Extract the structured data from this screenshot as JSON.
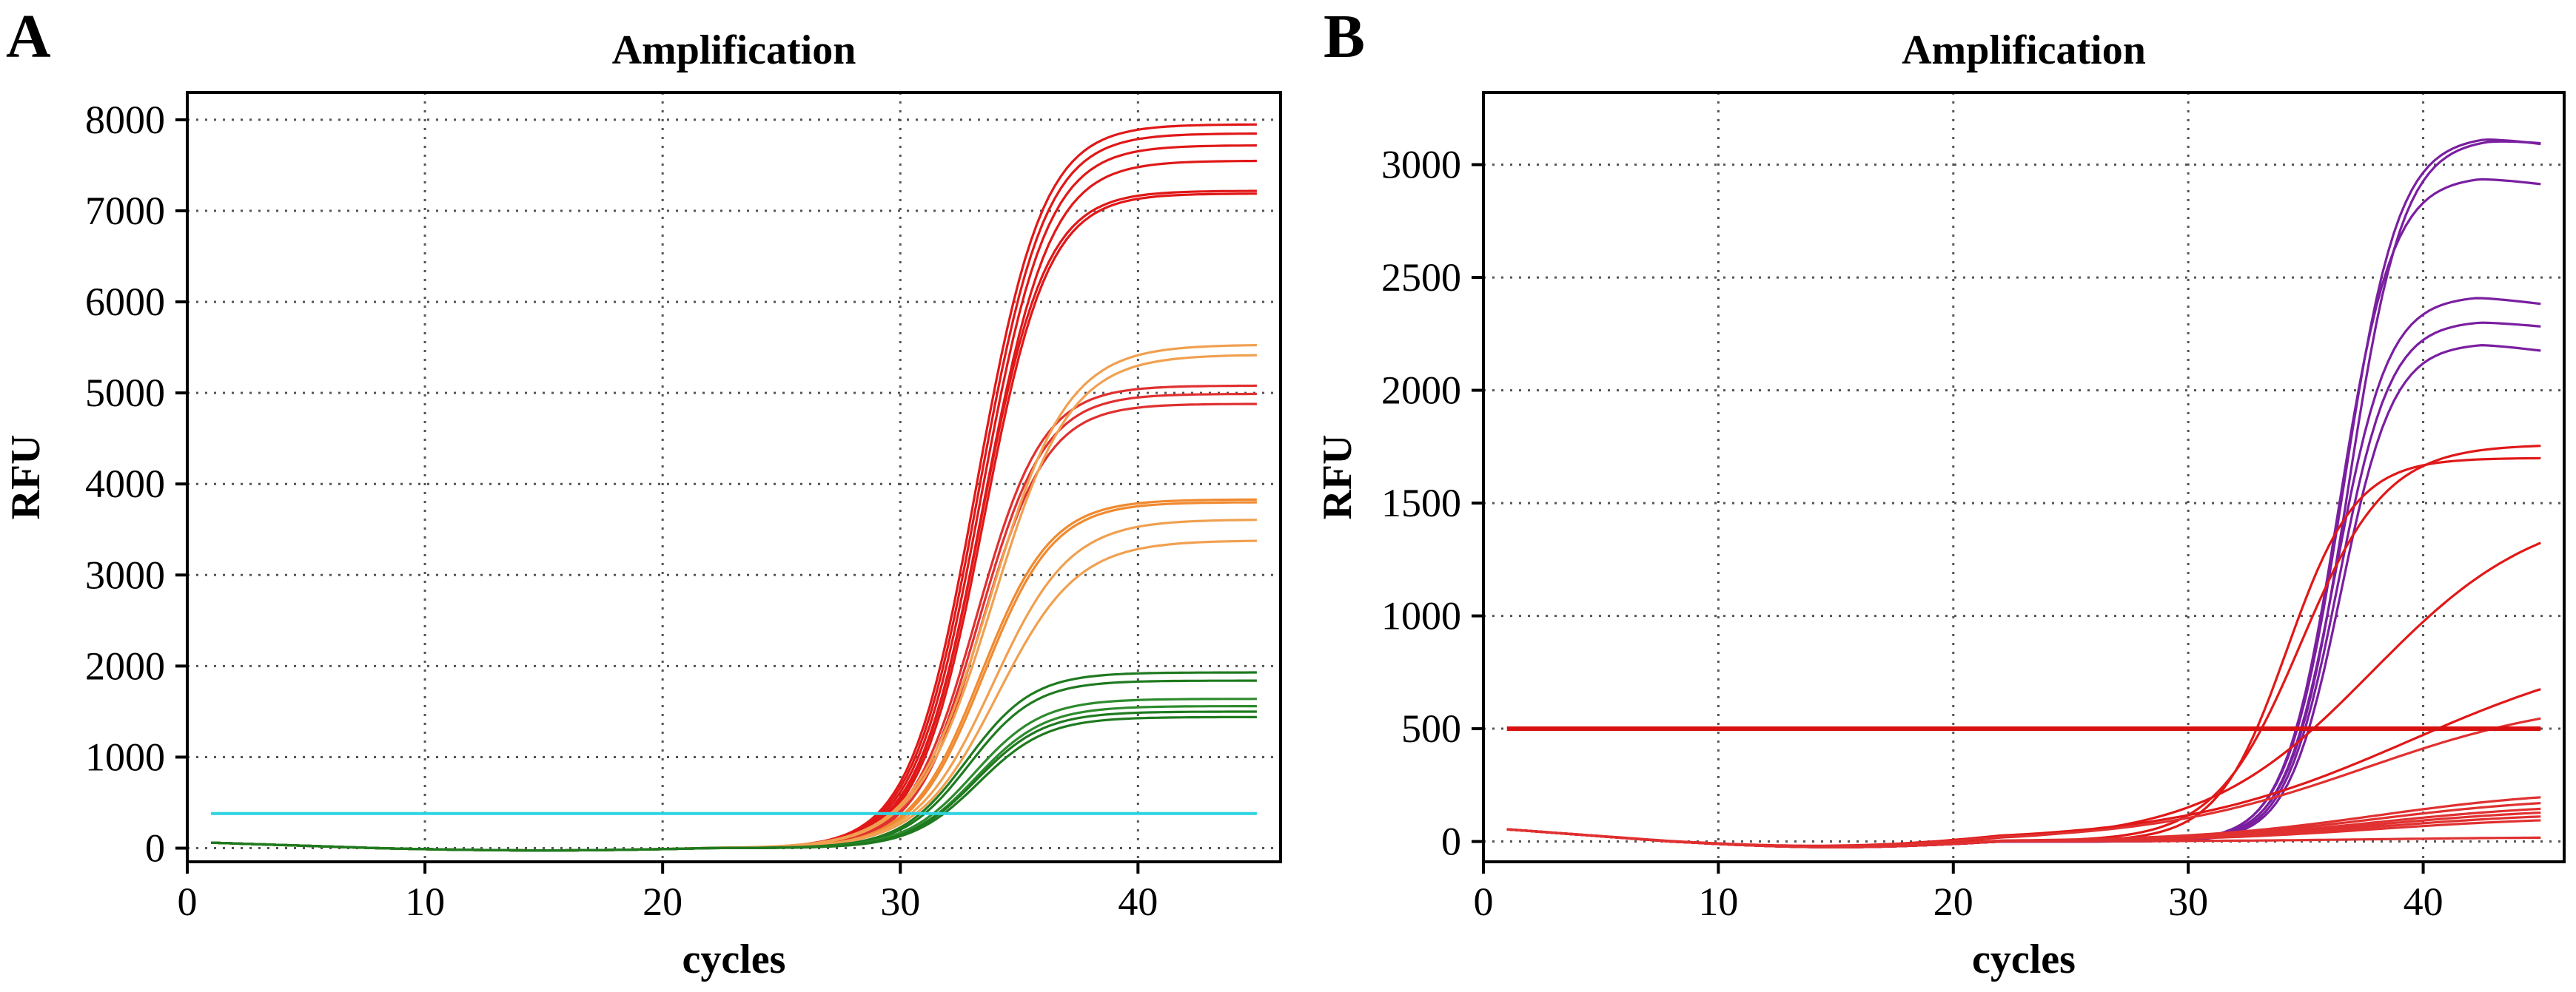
{
  "chart_data": [
    {
      "panel": "A",
      "type": "line",
      "title": "Amplification",
      "xlabel": "cycles",
      "ylabel": "RFU",
      "xlim": [
        0,
        46
      ],
      "ylim": [
        -150,
        8300
      ],
      "xticks": [
        0,
        10,
        20,
        30,
        40
      ],
      "yticks": [
        0,
        1000,
        2000,
        3000,
        4000,
        5000,
        6000,
        7000,
        8000
      ],
      "grid": true,
      "threshold": {
        "value": 380,
        "color": "#2cd4e0"
      },
      "series": [
        {
          "color": "#e01818",
          "plateau": 7950,
          "mid": 33.2,
          "k": 0.72
        },
        {
          "color": "#e01818",
          "plateau": 7850,
          "mid": 33.3,
          "k": 0.72
        },
        {
          "color": "#e01818",
          "plateau": 7720,
          "mid": 33.4,
          "k": 0.72
        },
        {
          "color": "#e01818",
          "plateau": 7550,
          "mid": 33.5,
          "k": 0.72
        },
        {
          "color": "#e01818",
          "plateau": 7220,
          "mid": 33.4,
          "k": 0.74
        },
        {
          "color": "#e01818",
          "plateau": 7190,
          "mid": 33.5,
          "k": 0.74
        },
        {
          "color": "#e03030",
          "plateau": 5080,
          "mid": 33.2,
          "k": 0.72
        },
        {
          "color": "#e03030",
          "plateau": 4990,
          "mid": 33.3,
          "k": 0.72
        },
        {
          "color": "#e03030",
          "plateau": 4880,
          "mid": 33.4,
          "k": 0.72
        },
        {
          "color": "#f0a050",
          "plateau": 5530,
          "mid": 33.8,
          "k": 0.62
        },
        {
          "color": "#f0a050",
          "plateau": 5420,
          "mid": 33.9,
          "k": 0.62
        },
        {
          "color": "#f08a30",
          "plateau": 3830,
          "mid": 33.4,
          "k": 0.68
        },
        {
          "color": "#f08a30",
          "plateau": 3800,
          "mid": 33.5,
          "k": 0.68
        },
        {
          "color": "#f0a050",
          "plateau": 3610,
          "mid": 33.9,
          "k": 0.62
        },
        {
          "color": "#f0a050",
          "plateau": 3380,
          "mid": 34.1,
          "k": 0.6
        },
        {
          "color": "#1f7a1f",
          "plateau": 1930,
          "mid": 32.8,
          "k": 0.72
        },
        {
          "color": "#1f7a1f",
          "plateau": 1840,
          "mid": 32.9,
          "k": 0.72
        },
        {
          "color": "#2e8b2e",
          "plateau": 1640,
          "mid": 33.1,
          "k": 0.7
        },
        {
          "color": "#2e8b2e",
          "plateau": 1560,
          "mid": 33.2,
          "k": 0.7
        },
        {
          "color": "#1f7a1f",
          "plateau": 1500,
          "mid": 33.2,
          "k": 0.7
        },
        {
          "color": "#1f7a1f",
          "plateau": 1440,
          "mid": 33.3,
          "k": 0.7
        }
      ]
    },
    {
      "panel": "B",
      "type": "line",
      "title": "Amplification",
      "xlabel": "cycles",
      "ylabel": "RFU",
      "xlim": [
        0,
        46
      ],
      "ylim": [
        -90,
        3320
      ],
      "xticks": [
        0,
        10,
        20,
        30,
        40
      ],
      "yticks": [
        0,
        500,
        1000,
        1500,
        2000,
        2500,
        3000
      ],
      "grid": true,
      "threshold": {
        "value": 500,
        "color": "#d81010"
      },
      "series": [
        {
          "color": "#7a1fa0",
          "plateau": 3130,
          "mid": 36.6,
          "k": 0.85,
          "droop": 45
        },
        {
          "color": "#7a1fa0",
          "plateau": 3120,
          "mid": 36.8,
          "k": 0.85,
          "droop": 30
        },
        {
          "color": "#7a1fa0",
          "plateau": 2950,
          "mid": 36.4,
          "k": 0.88,
          "droop": 40
        },
        {
          "color": "#7a1fa0",
          "plateau": 2420,
          "mid": 36.3,
          "k": 0.9,
          "droop": 40
        },
        {
          "color": "#7a1fa0",
          "plateau": 2310,
          "mid": 36.4,
          "k": 0.9,
          "droop": 30
        },
        {
          "color": "#7a1fa0",
          "plateau": 2210,
          "mid": 36.5,
          "k": 0.9,
          "droop": 40
        },
        {
          "color": "#e01818",
          "plateau": 1760,
          "mid": 34.8,
          "k": 0.55
        },
        {
          "color": "#e01818",
          "plateau": 1700,
          "mid": 34.2,
          "k": 0.68
        },
        {
          "color": "#e01818",
          "plateau": 1500,
          "mid": 37.8,
          "k": 0.28
        },
        {
          "color": "#e01818",
          "plateau": 900,
          "mid": 39.5,
          "k": 0.2
        },
        {
          "color": "#e03030",
          "plateau": 650,
          "mid": 37.5,
          "k": 0.22
        },
        {
          "color": "#e03030",
          "plateau": 230,
          "mid": 38,
          "k": 0.25
        },
        {
          "color": "#e03030",
          "plateau": 200,
          "mid": 38,
          "k": 0.25
        },
        {
          "color": "#e03030",
          "plateau": 170,
          "mid": 38,
          "k": 0.25
        },
        {
          "color": "#e03030",
          "plateau": 150,
          "mid": 38,
          "k": 0.25
        },
        {
          "color": "#e03030",
          "plateau": 130,
          "mid": 38,
          "k": 0.25
        },
        {
          "color": "#e03030",
          "plateau": 110,
          "mid": 38,
          "k": 0.25
        },
        {
          "color": "#e03030",
          "plateau": 20,
          "mid": 38,
          "k": 0.25
        }
      ]
    }
  ],
  "panels": {
    "a": {
      "letter": "A"
    },
    "b": {
      "letter": "B"
    }
  }
}
